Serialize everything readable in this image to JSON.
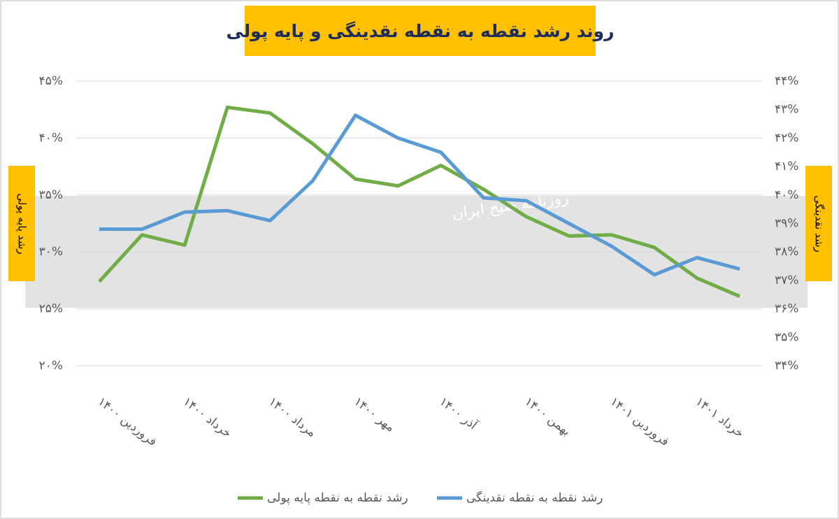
{
  "chart_data": {
    "type": "line",
    "title": "روند رشد نقطه به نقطه نقدینگی و پایه پولی",
    "y_label": "رشد پایه پولی",
    "y2_label": "رشد نقدینگی",
    "watermark": "روزنامه صبح ایران",
    "categories": [
      "فروردین ۱۴۰۰",
      null,
      "خرداد ۱۴۰۰",
      null,
      "مرداد ۱۴۰۰",
      null,
      "مهر ۱۴۰۰",
      null,
      "آذر ۱۴۰۰",
      null,
      "بهمن ۱۴۰۰",
      null,
      "فروردین ۱۴۰۱",
      null,
      "خرداد ۱۴۰۱",
      null
    ],
    "series": [
      {
        "name": "رشد نقطه به نقطه پایه پولی",
        "color": "#70AD47",
        "axis": "y",
        "values": [
          27.4,
          31.5,
          30.6,
          42.7,
          42.2,
          39.5,
          36.4,
          35.8,
          37.6,
          35.5,
          33.1,
          31.4,
          31.5,
          30.4,
          27.7,
          26.1
        ]
      },
      {
        "name": "رشد نقطه به نقطه نقدینگی",
        "color": "#5B9BD5",
        "axis": "y2",
        "values": [
          38.8,
          38.8,
          39.4,
          39.45,
          39.1,
          40.5,
          42.8,
          42.0,
          41.5,
          39.9,
          39.8,
          39.0,
          38.2,
          37.2,
          37.8,
          37.4
        ]
      }
    ],
    "ylim": [
      20,
      45
    ],
    "yticks": [
      {
        "value": 20,
        "label": "۲۰%"
      },
      {
        "value": 25,
        "label": "۲۵%"
      },
      {
        "value": 30,
        "label": "۳۰%"
      },
      {
        "value": 35,
        "label": "۳۵%"
      },
      {
        "value": 40,
        "label": "۴۰%"
      },
      {
        "value": 45,
        "label": "۴۵%"
      }
    ],
    "y2lim": [
      34,
      44
    ],
    "y2ticks": [
      {
        "value": 34,
        "label": "۳۴%"
      },
      {
        "value": 35,
        "label": "۳۵%"
      },
      {
        "value": 36,
        "label": "۳۶%"
      },
      {
        "value": 37,
        "label": "۳۷%"
      },
      {
        "value": 38,
        "label": "۳۸%"
      },
      {
        "value": 39,
        "label": "۳۹%"
      },
      {
        "value": 40,
        "label": "۴۰%"
      },
      {
        "value": 41,
        "label": "۴۱%"
      },
      {
        "value": 42,
        "label": "۴۲%"
      },
      {
        "value": 43,
        "label": "۴۳%"
      },
      {
        "value": 44,
        "label": "۴۴%"
      }
    ],
    "grid": true
  }
}
